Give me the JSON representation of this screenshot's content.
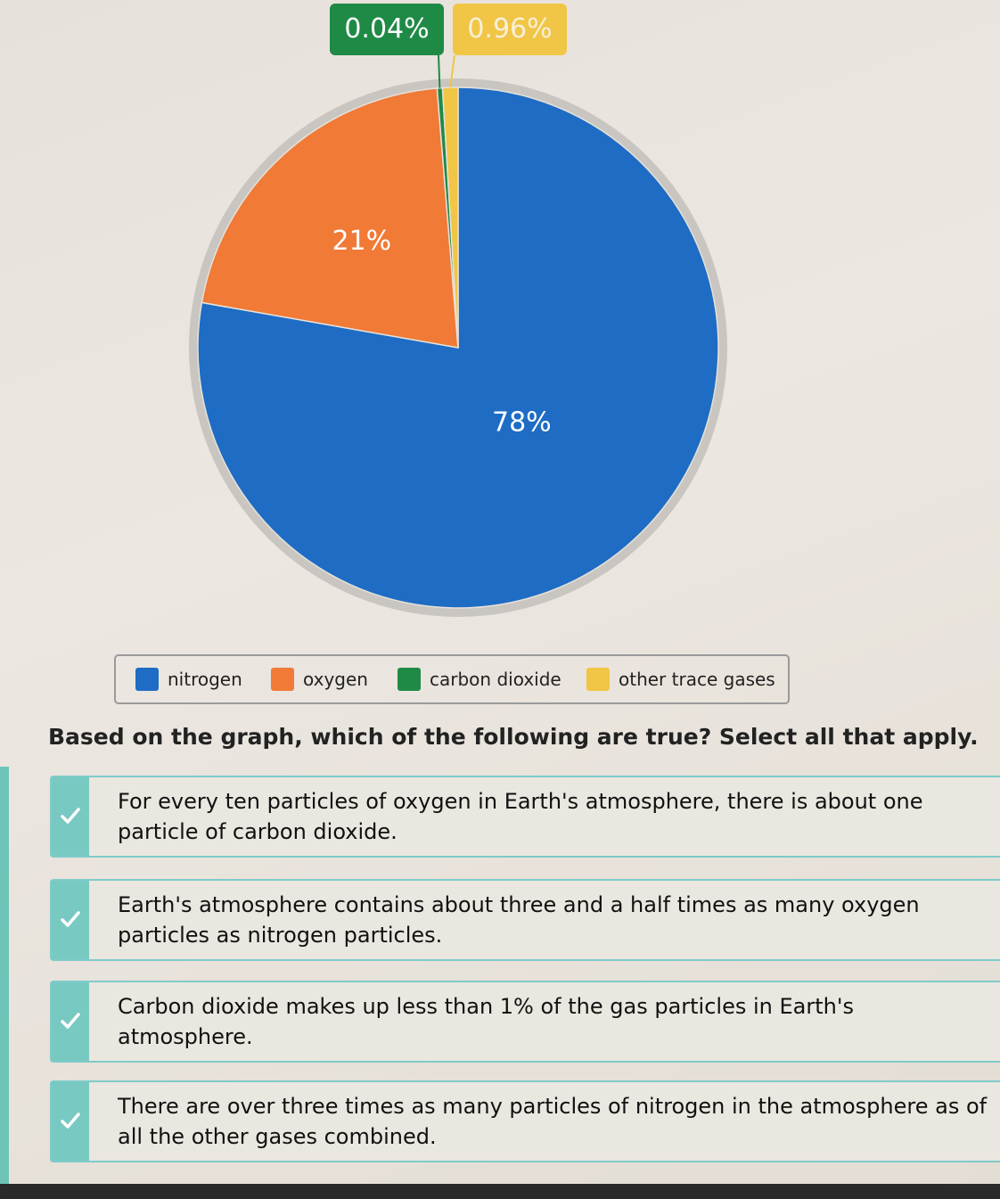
{
  "chart_data": {
    "type": "pie",
    "slices": [
      {
        "label": "nitrogen",
        "value": 78,
        "display": "78%",
        "color": "#1e6cc4"
      },
      {
        "label": "oxygen",
        "value": 21,
        "display": "21%",
        "color": "#f07a36"
      },
      {
        "label": "carbon dioxide",
        "value": 0.04,
        "display": "0.04%",
        "color": "#1f8a45"
      },
      {
        "label": "other trace gases",
        "value": 0.96,
        "display": "0.96%",
        "color": "#f1c546"
      }
    ],
    "legend_position": "bottom"
  },
  "question": {
    "prompt": "Based on the graph, which of the following are true? Select all that apply.",
    "options": [
      {
        "text": "For every ten particles of oxygen in Earth's atmosphere, there is about one particle of carbon dioxide.",
        "checked": true
      },
      {
        "text": "Earth's atmosphere contains about three and a half times as many oxygen particles as nitrogen particles.",
        "checked": true
      },
      {
        "text": "Carbon dioxide makes up less than 1% of the gas particles in Earth's atmosphere.",
        "checked": true
      },
      {
        "text": "There are over three times as many particles of nitrogen in the atmosphere as of all the other gases combined.",
        "checked": true
      }
    ]
  },
  "colors": {
    "accent_teal": "#79c9c3",
    "pie_border": "#c9c6c1"
  },
  "icons": {
    "option_check": "check-icon"
  }
}
